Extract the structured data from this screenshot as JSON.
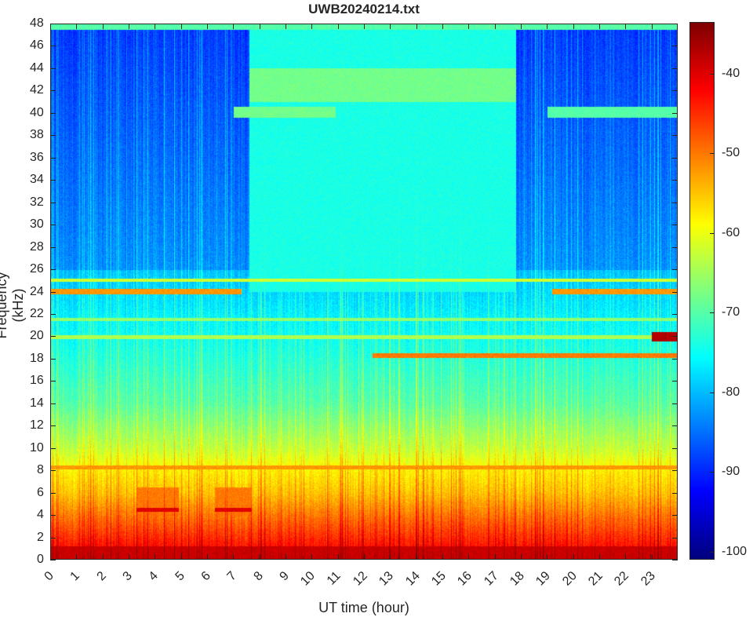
{
  "chart_data": {
    "type": "heatmap",
    "title": "UWB20240214.txt",
    "xlabel": "UT time (hour)",
    "ylabel": "Frequency (kHz)",
    "xlim": [
      0,
      24
    ],
    "ylim": [
      0,
      48
    ],
    "xticks": [
      0,
      1,
      2,
      3,
      4,
      5,
      6,
      7,
      8,
      9,
      10,
      11,
      12,
      13,
      14,
      15,
      16,
      17,
      18,
      19,
      20,
      21,
      22,
      23
    ],
    "yticks": [
      0,
      2,
      4,
      6,
      8,
      10,
      12,
      14,
      16,
      18,
      20,
      22,
      24,
      26,
      28,
      30,
      32,
      34,
      36,
      38,
      40,
      42,
      44,
      46,
      48
    ],
    "colormap": "jet",
    "clim": [
      -101,
      -33.5
    ],
    "colorbar_ticks": [
      -40,
      -50,
      -60,
      -70,
      -80,
      -90,
      -100
    ],
    "background_profile_dB": [
      [
        0,
        -40
      ],
      [
        2,
        -45
      ],
      [
        4,
        -50
      ],
      [
        6,
        -55
      ],
      [
        8,
        -58
      ],
      [
        10,
        -63
      ],
      [
        14,
        -70
      ],
      [
        20,
        -75
      ],
      [
        26,
        -80
      ],
      [
        48,
        -86
      ]
    ],
    "features": [
      {
        "name": "elevated high band",
        "t": [
          7.6,
          17.8
        ],
        "f": [
          24,
          48
        ],
        "level": -74
      },
      {
        "name": "41-44 kHz band",
        "t": [
          7.6,
          17.8
        ],
        "f": [
          41,
          44
        ],
        "level": -68
      },
      {
        "name": "24 kHz line",
        "t": [
          0,
          7.3
        ],
        "f": [
          23.8,
          24.3
        ],
        "level": -52
      },
      {
        "name": "24 kHz line",
        "t": [
          19.2,
          24
        ],
        "f": [
          23.8,
          24.3
        ],
        "level": -52
      },
      {
        "name": "25 kHz line",
        "t": [
          0,
          24
        ],
        "f": [
          24.9,
          25.2
        ],
        "level": -62
      },
      {
        "name": "40 kHz line",
        "t": [
          7,
          10.9
        ],
        "f": [
          39.6,
          40.6
        ],
        "level": -68
      },
      {
        "name": "40 kHz line",
        "t": [
          19,
          24
        ],
        "f": [
          39.6,
          40.6
        ],
        "level": -70
      },
      {
        "name": "18.3 kHz line",
        "t": [
          12.3,
          24
        ],
        "f": [
          18.1,
          18.5
        ],
        "level": -50
      },
      {
        "name": "20 kHz line",
        "t": [
          23,
          24
        ],
        "f": [
          19.6,
          20.4
        ],
        "level": -37
      },
      {
        "name": "20 kHz line",
        "t": [
          0,
          23
        ],
        "f": [
          19.8,
          20.1
        ],
        "level": -64
      },
      {
        "name": "21.5 kHz line",
        "t": [
          0,
          24
        ],
        "f": [
          21.4,
          21.7
        ],
        "level": -66
      },
      {
        "name": "8.3 kHz line",
        "t": [
          0,
          24
        ],
        "f": [
          8.1,
          8.5
        ],
        "level": -52
      },
      {
        "name": "4.5 kHz segment",
        "t": [
          3.3,
          4.9
        ],
        "f": [
          4.3,
          4.7
        ],
        "level": -40
      },
      {
        "name": "4.5 kHz segment",
        "t": [
          6.3,
          7.7
        ],
        "f": [
          4.3,
          4.7
        ],
        "level": -40
      },
      {
        "name": "lower band boost",
        "t": [
          3.3,
          4.9
        ],
        "f": [
          4,
          6.5
        ],
        "level": -50
      },
      {
        "name": "lower band boost",
        "t": [
          6.3,
          7.7
        ],
        "f": [
          4,
          6.5
        ],
        "level": -50
      },
      {
        "name": "top edge",
        "t": [
          0,
          24
        ],
        "f": [
          47.5,
          48
        ],
        "level": -70
      }
    ]
  }
}
